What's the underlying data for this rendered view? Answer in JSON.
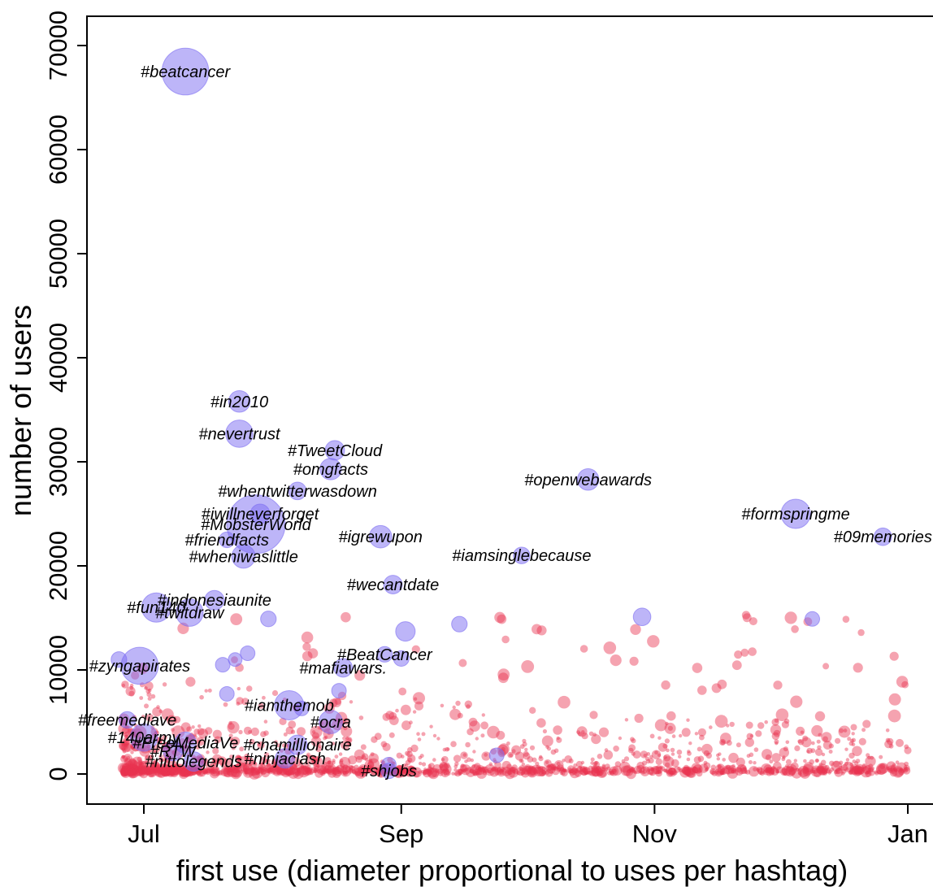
{
  "chart_data": {
    "type": "scatter",
    "xlabel": "first use (diameter proportional to uses per hashtag)",
    "ylabel": "number of users",
    "xlim": [
      "2009-06-13",
      "2010-01-01"
    ],
    "ylim": [
      -2900,
      72000
    ],
    "x_ticks": [
      {
        "date": "2009-07-01",
        "label": "Jul"
      },
      {
        "date": "2009-09-01",
        "label": "Sep"
      },
      {
        "date": "2009-11-01",
        "label": "Nov"
      },
      {
        "date": "2010-01-01",
        "label": "Jan"
      }
    ],
    "y_ticks": [
      0,
      10000,
      20000,
      30000,
      40000,
      50000,
      60000,
      70000
    ],
    "grid": false,
    "legend": "none",
    "colors": {
      "highlighted": "#7b6cf2",
      "other": "#e8334f"
    },
    "highlighted_hashtags": [
      {
        "label": "#beatcancer",
        "date": "2009-07-11",
        "users": 67500,
        "uses_scale": 4.8
      },
      {
        "label": "#in2010",
        "date": "2009-07-24",
        "users": 35800,
        "uses_scale": 2.2
      },
      {
        "label": "#nevertrust",
        "date": "2009-07-24",
        "users": 32700,
        "uses_scale": 2.8
      },
      {
        "label": "#TweetCloud",
        "date": "2009-08-16",
        "users": 31100,
        "uses_scale": 2.0
      },
      {
        "label": "#omgfacts",
        "date": "2009-08-15",
        "users": 29300,
        "uses_scale": 2.2
      },
      {
        "label": "#whentwitterwasdown",
        "date": "2009-08-07",
        "users": 27200,
        "uses_scale": 1.8
      },
      {
        "label": "#iwillneverforget",
        "date": "2009-07-29",
        "users": 25000,
        "uses_scale": 2.0
      },
      {
        "label": "#MobsterWorld",
        "date": "2009-07-28",
        "users": 24000,
        "uses_scale": 6.0
      },
      {
        "label": "#friendfacts",
        "date": "2009-07-21",
        "users": 22500,
        "uses_scale": 1.6
      },
      {
        "label": "#igrewupon",
        "date": "2009-08-27",
        "users": 22800,
        "uses_scale": 2.3
      },
      {
        "label": "#wheniwaslittle",
        "date": "2009-07-25",
        "users": 20900,
        "uses_scale": 2.4
      },
      {
        "label": "#wecantdate",
        "date": "2009-08-30",
        "users": 18200,
        "uses_scale": 1.9
      },
      {
        "label": "#indonesiaunite",
        "date": "2009-07-18",
        "users": 16700,
        "uses_scale": 2.0
      },
      {
        "label": "#fun140",
        "date": "2009-07-04",
        "users": 16000,
        "uses_scale": 3.0
      },
      {
        "label": "#twitdraw",
        "date": "2009-07-12",
        "users": 15500,
        "uses_scale": 2.8
      },
      {
        "label": "#BeatCancer",
        "date": "2009-08-28",
        "users": 11500,
        "uses_scale": 1.6
      },
      {
        "label": "#mafiawars.",
        "date": "2009-08-18",
        "users": 10200,
        "uses_scale": 1.9
      },
      {
        "label": "#zyngapirates",
        "date": "2009-06-30",
        "users": 10400,
        "uses_scale": 3.8
      },
      {
        "label": "#iamthemob",
        "date": "2009-08-05",
        "users": 6600,
        "uses_scale": 3.0
      },
      {
        "label": "#ocra",
        "date": "2009-08-15",
        "users": 5000,
        "uses_scale": 2.4
      },
      {
        "label": "#freemediave",
        "date": "2009-06-27",
        "users": 5200,
        "uses_scale": 1.7
      },
      {
        "label": "#140army",
        "date": "2009-07-01",
        "users": 3500,
        "uses_scale": 2.8
      },
      {
        "label": "#FreeMediaVe",
        "date": "2009-07-11",
        "users": 3000,
        "uses_scale": 2.2
      },
      {
        "label": "#RTW",
        "date": "2009-07-08",
        "users": 2200,
        "uses_scale": 2.0
      },
      {
        "label": "#chamillionaire",
        "date": "2009-08-07",
        "users": 2800,
        "uses_scale": 2.0
      },
      {
        "label": "#ninjaclash",
        "date": "2009-08-04",
        "users": 1500,
        "uses_scale": 2.0
      },
      {
        "label": "#nittolegends",
        "date": "2009-07-13",
        "users": 1200,
        "uses_scale": 2.0
      },
      {
        "label": "#shjobs",
        "date": "2009-08-29",
        "users": 300,
        "uses_scale": 1.6
      },
      {
        "label": "#openwebawards",
        "date": "2009-10-16",
        "users": 28300,
        "uses_scale": 2.2
      },
      {
        "label": "#formspringme",
        "date": "2009-12-05",
        "users": 25000,
        "uses_scale": 3.0
      },
      {
        "label": "#09memories",
        "date": "2009-12-26",
        "users": 22800,
        "uses_scale": 1.8
      },
      {
        "label": "#iamsinglebecause",
        "date": "2009-09-30",
        "users": 21000,
        "uses_scale": 1.7
      }
    ],
    "other_highlighted_points": [
      {
        "date": "2009-06-25",
        "users": 11000,
        "uses_scale": 1.6
      },
      {
        "date": "2009-07-20",
        "users": 10500,
        "uses_scale": 1.5
      },
      {
        "date": "2009-07-23",
        "users": 11000,
        "uses_scale": 1.4
      },
      {
        "date": "2009-07-26",
        "users": 11600,
        "uses_scale": 1.5
      },
      {
        "date": "2009-07-21",
        "users": 7700,
        "uses_scale": 1.5
      },
      {
        "date": "2009-07-31",
        "users": 14900,
        "uses_scale": 1.6
      },
      {
        "date": "2009-09-02",
        "users": 13700,
        "uses_scale": 2.0
      },
      {
        "date": "2009-09-01",
        "users": 11100,
        "uses_scale": 1.6
      },
      {
        "date": "2009-09-15",
        "users": 14400,
        "uses_scale": 1.6
      },
      {
        "date": "2009-10-29",
        "users": 15100,
        "uses_scale": 1.8
      },
      {
        "date": "2009-12-09",
        "users": 14900,
        "uses_scale": 1.5
      },
      {
        "date": "2009-08-17",
        "users": 8000,
        "uses_scale": 1.5
      },
      {
        "date": "2009-08-08",
        "users": 6300,
        "uses_scale": 1.5
      },
      {
        "date": "2009-09-24",
        "users": 1800,
        "uses_scale": 1.5
      },
      {
        "date": "2009-08-29",
        "users": 900,
        "uses_scale": 1.5
      }
    ],
    "other_hashtags_note": "several thousand smaller hashtags clustered below ~15000 users"
  }
}
